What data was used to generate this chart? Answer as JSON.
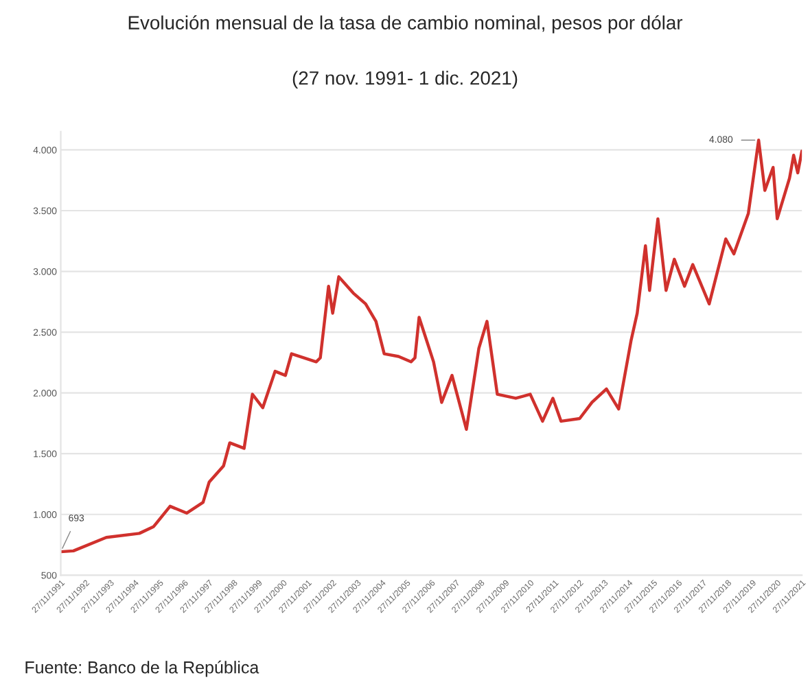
{
  "chart_data": {
    "type": "line",
    "title": "Evolución mensual de la tasa de cambio nominal, pesos por dólar",
    "subtitle": "(27 nov. 1991- 1 dic. 2021)",
    "annotations": [
      {
        "text": "693",
        "x": "1991-11-27",
        "y": 693
      },
      {
        "text": "4.080",
        "x": "2020-03",
        "y": 4080
      },
      "Fuente: Banco de la República"
    ],
    "series": [
      {
        "color": "#d0312d",
        "x": [
          "1991-11-27",
          "1992-06",
          "1993-10",
          "1995-02",
          "1995-09",
          "1996-05",
          "1997-01",
          "1997-09",
          "1997-12",
          "1998-07",
          "1998-10",
          "1999-05",
          "1999-09",
          "2000-02",
          "2000-08",
          "2001-01",
          "2001-04",
          "2002-04",
          "2002-06",
          "2002-10",
          "2002-12",
          "2003-03",
          "2003-10",
          "2004-04",
          "2004-09",
          "2005-01",
          "2005-08",
          "2006-02",
          "2006-04",
          "2006-06",
          "2007-01",
          "2007-05",
          "2007-10",
          "2008-05",
          "2008-11",
          "2009-03",
          "2009-08",
          "2010-05",
          "2010-12",
          "2011-06",
          "2011-11",
          "2012-03",
          "2012-12",
          "2013-06",
          "2014-01",
          "2014-07",
          "2015-01",
          "2015-04",
          "2015-08",
          "2015-10",
          "2016-02",
          "2016-06",
          "2016-10",
          "2017-03",
          "2017-07",
          "2018-03",
          "2018-11",
          "2019-03",
          "2019-10",
          "2020-03",
          "2020-06",
          "2020-10",
          "2020-12",
          "2021-06",
          "2021-08",
          "2021-10",
          "2021-12-01"
        ],
        "values": [
          693,
          700,
          811,
          844,
          900,
          1067,
          1011,
          1100,
          1267,
          1400,
          1589,
          1544,
          1989,
          1878,
          2178,
          2144,
          2322,
          2256,
          2289,
          2878,
          2656,
          2956,
          2822,
          2733,
          2589,
          2322,
          2300,
          2256,
          2289,
          2622,
          2256,
          1922,
          2144,
          1700,
          2367,
          2589,
          1989,
          1956,
          1989,
          1767,
          1956,
          1767,
          1789,
          1922,
          2033,
          1867,
          2433,
          2656,
          3211,
          2844,
          3433,
          2844,
          3100,
          2878,
          3056,
          2733,
          3267,
          3144,
          3478,
          4080,
          3667,
          3856,
          3433,
          3767,
          3956,
          3811,
          3990
        ]
      }
    ],
    "xlim": [
      "1991-11-27",
      "2021-12-01"
    ],
    "xticks": [
      {
        "value": "1991-11-27",
        "label": "27/11/1991"
      },
      {
        "value": "1992-11-27",
        "label": "27/11/1992"
      },
      {
        "value": "1993-11-27",
        "label": "27/11/1993"
      },
      {
        "value": "1994-11-27",
        "label": "27/11/1994"
      },
      {
        "value": "1995-11-27",
        "label": "27/11/1995"
      },
      {
        "value": "1996-11-27",
        "label": "27/11/1996"
      },
      {
        "value": "1997-11-27",
        "label": "27/11/1997"
      },
      {
        "value": "1998-11-27",
        "label": "27/11/1998"
      },
      {
        "value": "1999-11-27",
        "label": "27/11/1999"
      },
      {
        "value": "2000-11-27",
        "label": "27/11/2000"
      },
      {
        "value": "2001-11-27",
        "label": "27/11/2001"
      },
      {
        "value": "2002-11-27",
        "label": "27/11/2002"
      },
      {
        "value": "2003-11-27",
        "label": "27/11/2003"
      },
      {
        "value": "2004-11-27",
        "label": "27/11/2004"
      },
      {
        "value": "2005-11-27",
        "label": "27/11/2005"
      },
      {
        "value": "2006-11-27",
        "label": "27/11/2006"
      },
      {
        "value": "2007-11-27",
        "label": "27/11/2007"
      },
      {
        "value": "2008-11-27",
        "label": "27/11/2008"
      },
      {
        "value": "2009-11-27",
        "label": "27/11/2009"
      },
      {
        "value": "2010-11-27",
        "label": "27/11/2010"
      },
      {
        "value": "2011-11-27",
        "label": "27/11/2011"
      },
      {
        "value": "2012-11-27",
        "label": "27/11/2012"
      },
      {
        "value": "2013-11-27",
        "label": "27/11/2013"
      },
      {
        "value": "2014-11-27",
        "label": "27/11/2014"
      },
      {
        "value": "2015-11-27",
        "label": "27/11/2015"
      },
      {
        "value": "2016-11-27",
        "label": "27/11/2016"
      },
      {
        "value": "2017-11-27",
        "label": "27/11/2017"
      },
      {
        "value": "2018-11-27",
        "label": "27/11/2018"
      },
      {
        "value": "2019-11-27",
        "label": "27/11/2019"
      },
      {
        "value": "2020-11-27",
        "label": "27/11/2020"
      },
      {
        "value": "2021-11-27",
        "label": "27/11/2021"
      }
    ],
    "ylim": [
      500,
      4150
    ],
    "yticks": [
      500,
      {
        "value": 1000,
        "label": "1.000"
      },
      {
        "value": 1500,
        "label": "1.500"
      },
      {
        "value": 2000,
        "label": "2.000"
      },
      {
        "value": 2500,
        "label": "2.500"
      },
      {
        "value": 3000,
        "label": "3.000"
      },
      {
        "value": 3500,
        "label": "3.500"
      },
      {
        "value": 4000,
        "label": "4.000"
      }
    ],
    "grid": "y",
    "legend": false,
    "marker": "none",
    "line_style": "solid"
  }
}
